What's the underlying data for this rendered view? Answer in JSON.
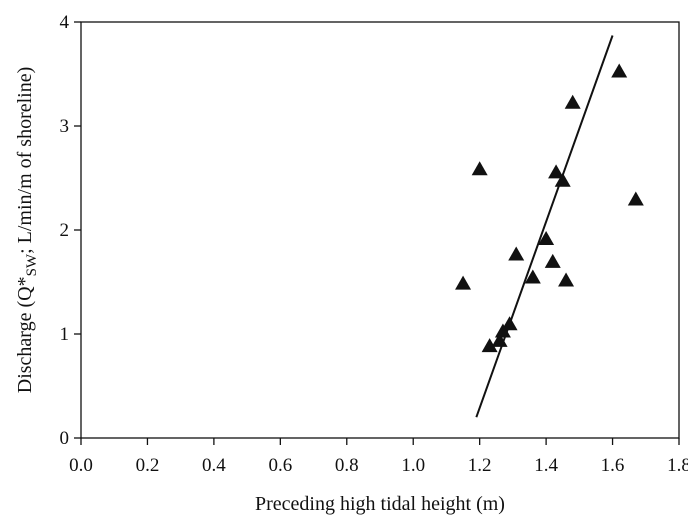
{
  "chart_data": {
    "type": "scatter",
    "title": "",
    "xlabel": "Preceding high tidal height (m)",
    "ylabel": {
      "prefix": "Discharge (Q*",
      "subscript": "SW",
      "suffix": "; L/min/m of shoreline)"
    },
    "xlim": [
      0.0,
      1.8
    ],
    "ylim": [
      0,
      4
    ],
    "xticks": [
      "0.0",
      "0.2",
      "0.4",
      "0.6",
      "0.8",
      "1.0",
      "1.2",
      "1.4",
      "1.6",
      "1.8"
    ],
    "yticks": [
      "0",
      "1",
      "2",
      "3",
      "4"
    ],
    "grid": false,
    "legend": "none",
    "marker": "triangle",
    "marker_color": "#111111",
    "series": [
      {
        "points": [
          {
            "x": 1.15,
            "y": 1.48
          },
          {
            "x": 1.2,
            "y": 2.58
          },
          {
            "x": 1.23,
            "y": 0.88
          },
          {
            "x": 1.26,
            "y": 0.93
          },
          {
            "x": 1.27,
            "y": 1.02
          },
          {
            "x": 1.29,
            "y": 1.09
          },
          {
            "x": 1.31,
            "y": 1.76
          },
          {
            "x": 1.36,
            "y": 1.54
          },
          {
            "x": 1.4,
            "y": 1.91
          },
          {
            "x": 1.42,
            "y": 1.69
          },
          {
            "x": 1.43,
            "y": 2.55
          },
          {
            "x": 1.45,
            "y": 2.47
          },
          {
            "x": 1.46,
            "y": 1.51
          },
          {
            "x": 1.48,
            "y": 3.22
          },
          {
            "x": 1.62,
            "y": 3.52
          },
          {
            "x": 1.67,
            "y": 2.29
          }
        ]
      }
    ],
    "trendline": {
      "x": [
        1.19,
        1.6
      ],
      "y": [
        0.2,
        3.87
      ]
    }
  }
}
